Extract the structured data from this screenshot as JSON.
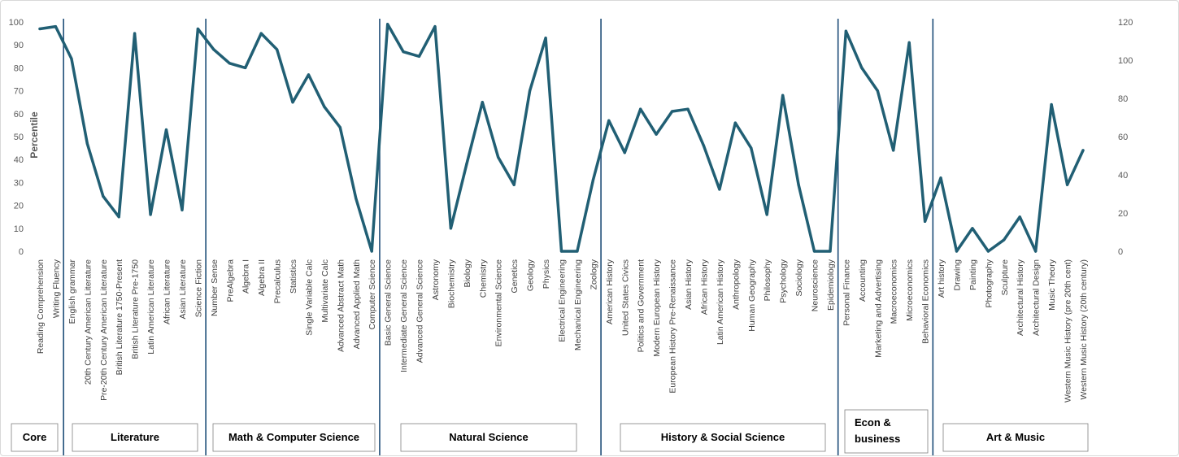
{
  "chart_data": {
    "type": "line",
    "ylabel": "Percentile",
    "ylim": [
      0,
      100
    ],
    "yticks": [
      0,
      10,
      20,
      30,
      40,
      50,
      60,
      70,
      80,
      90,
      100
    ],
    "y2lim": [
      0,
      120
    ],
    "y2ticks": [
      0,
      20,
      40,
      60,
      80,
      100,
      120
    ],
    "line_color": "#215f74",
    "divider_color": "#1f4e79",
    "categories": [
      "Reading Comprehension",
      "Writing Fluency",
      "English grammar",
      "20th Century American Literature",
      "Pre-20th Century American Literature",
      "British Literature 1750-Present",
      "British Literature Pre-1750",
      "Latin American Literature",
      "African Literature",
      "Asian Literature",
      "Science Fiction",
      "Number Sense",
      "PreAlgebra",
      "Algebra I",
      "Algebra II",
      "Precalculus",
      "Statistics",
      "Single Variable Calc",
      "Multivariate Calc",
      "Advanced Abstract Math",
      "Advanced Applied Math",
      "Computer Science",
      "Basic General Science",
      "Intermediate General Science",
      "Advanced General Science",
      "Astronomy",
      "Biochemistry",
      "Biology",
      "Chemistry",
      "Environmental Science",
      "Genetics",
      "Geology",
      "Physics",
      "Electrical Engineering",
      "Mechanical Engineering",
      "Zoology",
      "American History",
      "United States Civics",
      "Politics and Government",
      "Modern European History",
      "European History Pre-Renaissance",
      "Asian History",
      "African History",
      "Latin American History",
      "Anthropology",
      "Human Geography",
      "Philosophy",
      "Psychology",
      "Sociology",
      "Neuroscience",
      "Epidemiology",
      "Personal Finance",
      "Accounting",
      "Marketing and Advertising",
      "Macroeconomics",
      "Microeconomics",
      "Behavioral Economics",
      "Art history",
      "Drawing",
      "Painting",
      "Photography",
      "Sculpture",
      "Architectural History",
      "Architectural Design",
      "Music Theory",
      "Western Music History (pre 20th cent)",
      "Western Music History (20th century)"
    ],
    "values": [
      97,
      98,
      84,
      47,
      24,
      15,
      95,
      16,
      53,
      18,
      97,
      88,
      82,
      80,
      95,
      88,
      65,
      77,
      63,
      54,
      23,
      0,
      99,
      87,
      85,
      98,
      10,
      38,
      65,
      41,
      29,
      70,
      93,
      0,
      0,
      31,
      57,
      43,
      62,
      51,
      61,
      62,
      46,
      27,
      56,
      45,
      16,
      68,
      29,
      0,
      0,
      96,
      80,
      70,
      44,
      91,
      13,
      32,
      0,
      10,
      0,
      5,
      15,
      0,
      64,
      29,
      44
    ]
  },
  "groups": [
    {
      "label": "Core",
      "start": 0,
      "end": 1
    },
    {
      "label": "Literature",
      "start": 2,
      "end": 10
    },
    {
      "label": "Math & Computer Science",
      "start": 11,
      "end": 21
    },
    {
      "label": "Natural Science",
      "start": 22,
      "end": 35
    },
    {
      "label": "History & Social Science",
      "start": 36,
      "end": 50
    },
    {
      "label": "Econ & business",
      "start": 51,
      "end": 56
    },
    {
      "label": "Art & Music",
      "start": 57,
      "end": 66
    }
  ]
}
